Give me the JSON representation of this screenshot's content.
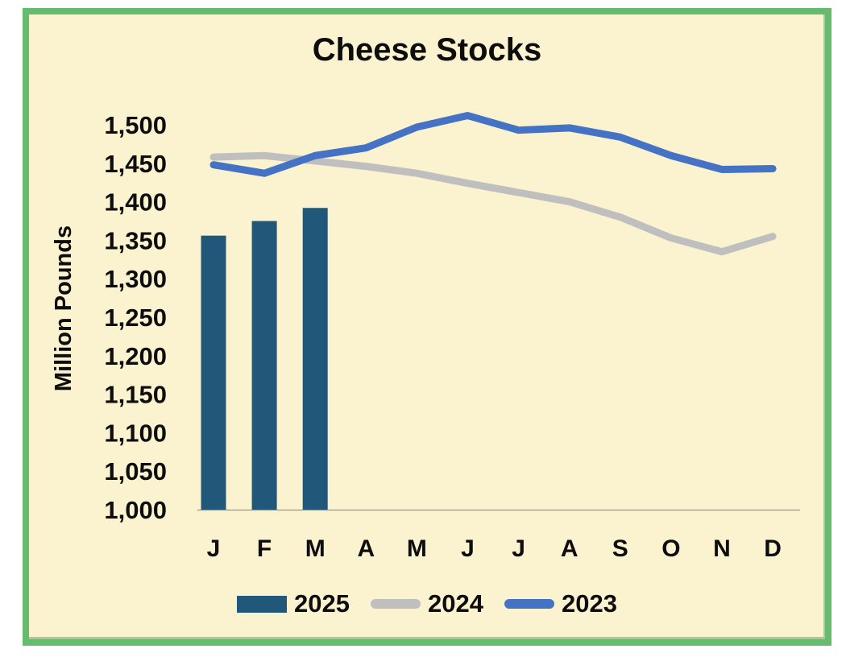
{
  "title": "Cheese Stocks",
  "colors": {
    "background": "#FBF2D0",
    "frame_border": "#65BC6E",
    "bar_2025": "#215879",
    "line_2024": "#BFBFBF",
    "line_2023": "#4472C4",
    "axis_line": "#999999",
    "text": "#0d0d0d"
  },
  "chart_data": {
    "type": "combo",
    "title": "Cheese Stocks",
    "xlabel": "",
    "ylabel": "Million Pounds",
    "ylim": [
      1000,
      1500
    ],
    "ytick_step": 50,
    "grid": false,
    "legend_position": "bottom",
    "categories": [
      "J",
      "F",
      "M",
      "A",
      "M",
      "J",
      "J",
      "A",
      "S",
      "O",
      "N",
      "D"
    ],
    "series": [
      {
        "name": "2025",
        "type": "bar",
        "color": "#215879",
        "values": [
          1356,
          1375,
          1392,
          null,
          null,
          null,
          null,
          null,
          null,
          null,
          null,
          null
        ]
      },
      {
        "name": "2024",
        "type": "line",
        "color": "#BFBFBF",
        "values": [
          1458,
          1460,
          1453,
          1446,
          1437,
          1424,
          1412,
          1400,
          1380,
          1353,
          1335,
          1355
        ]
      },
      {
        "name": "2023",
        "type": "line",
        "color": "#4472C4",
        "values": [
          1448,
          1437,
          1460,
          1470,
          1497,
          1512,
          1493,
          1496,
          1484,
          1460,
          1442,
          1443
        ]
      }
    ]
  },
  "legend": {
    "items": [
      {
        "label": "2025",
        "swatch": "bar"
      },
      {
        "label": "2024",
        "swatch": "line"
      },
      {
        "label": "2023",
        "swatch": "line"
      }
    ]
  }
}
